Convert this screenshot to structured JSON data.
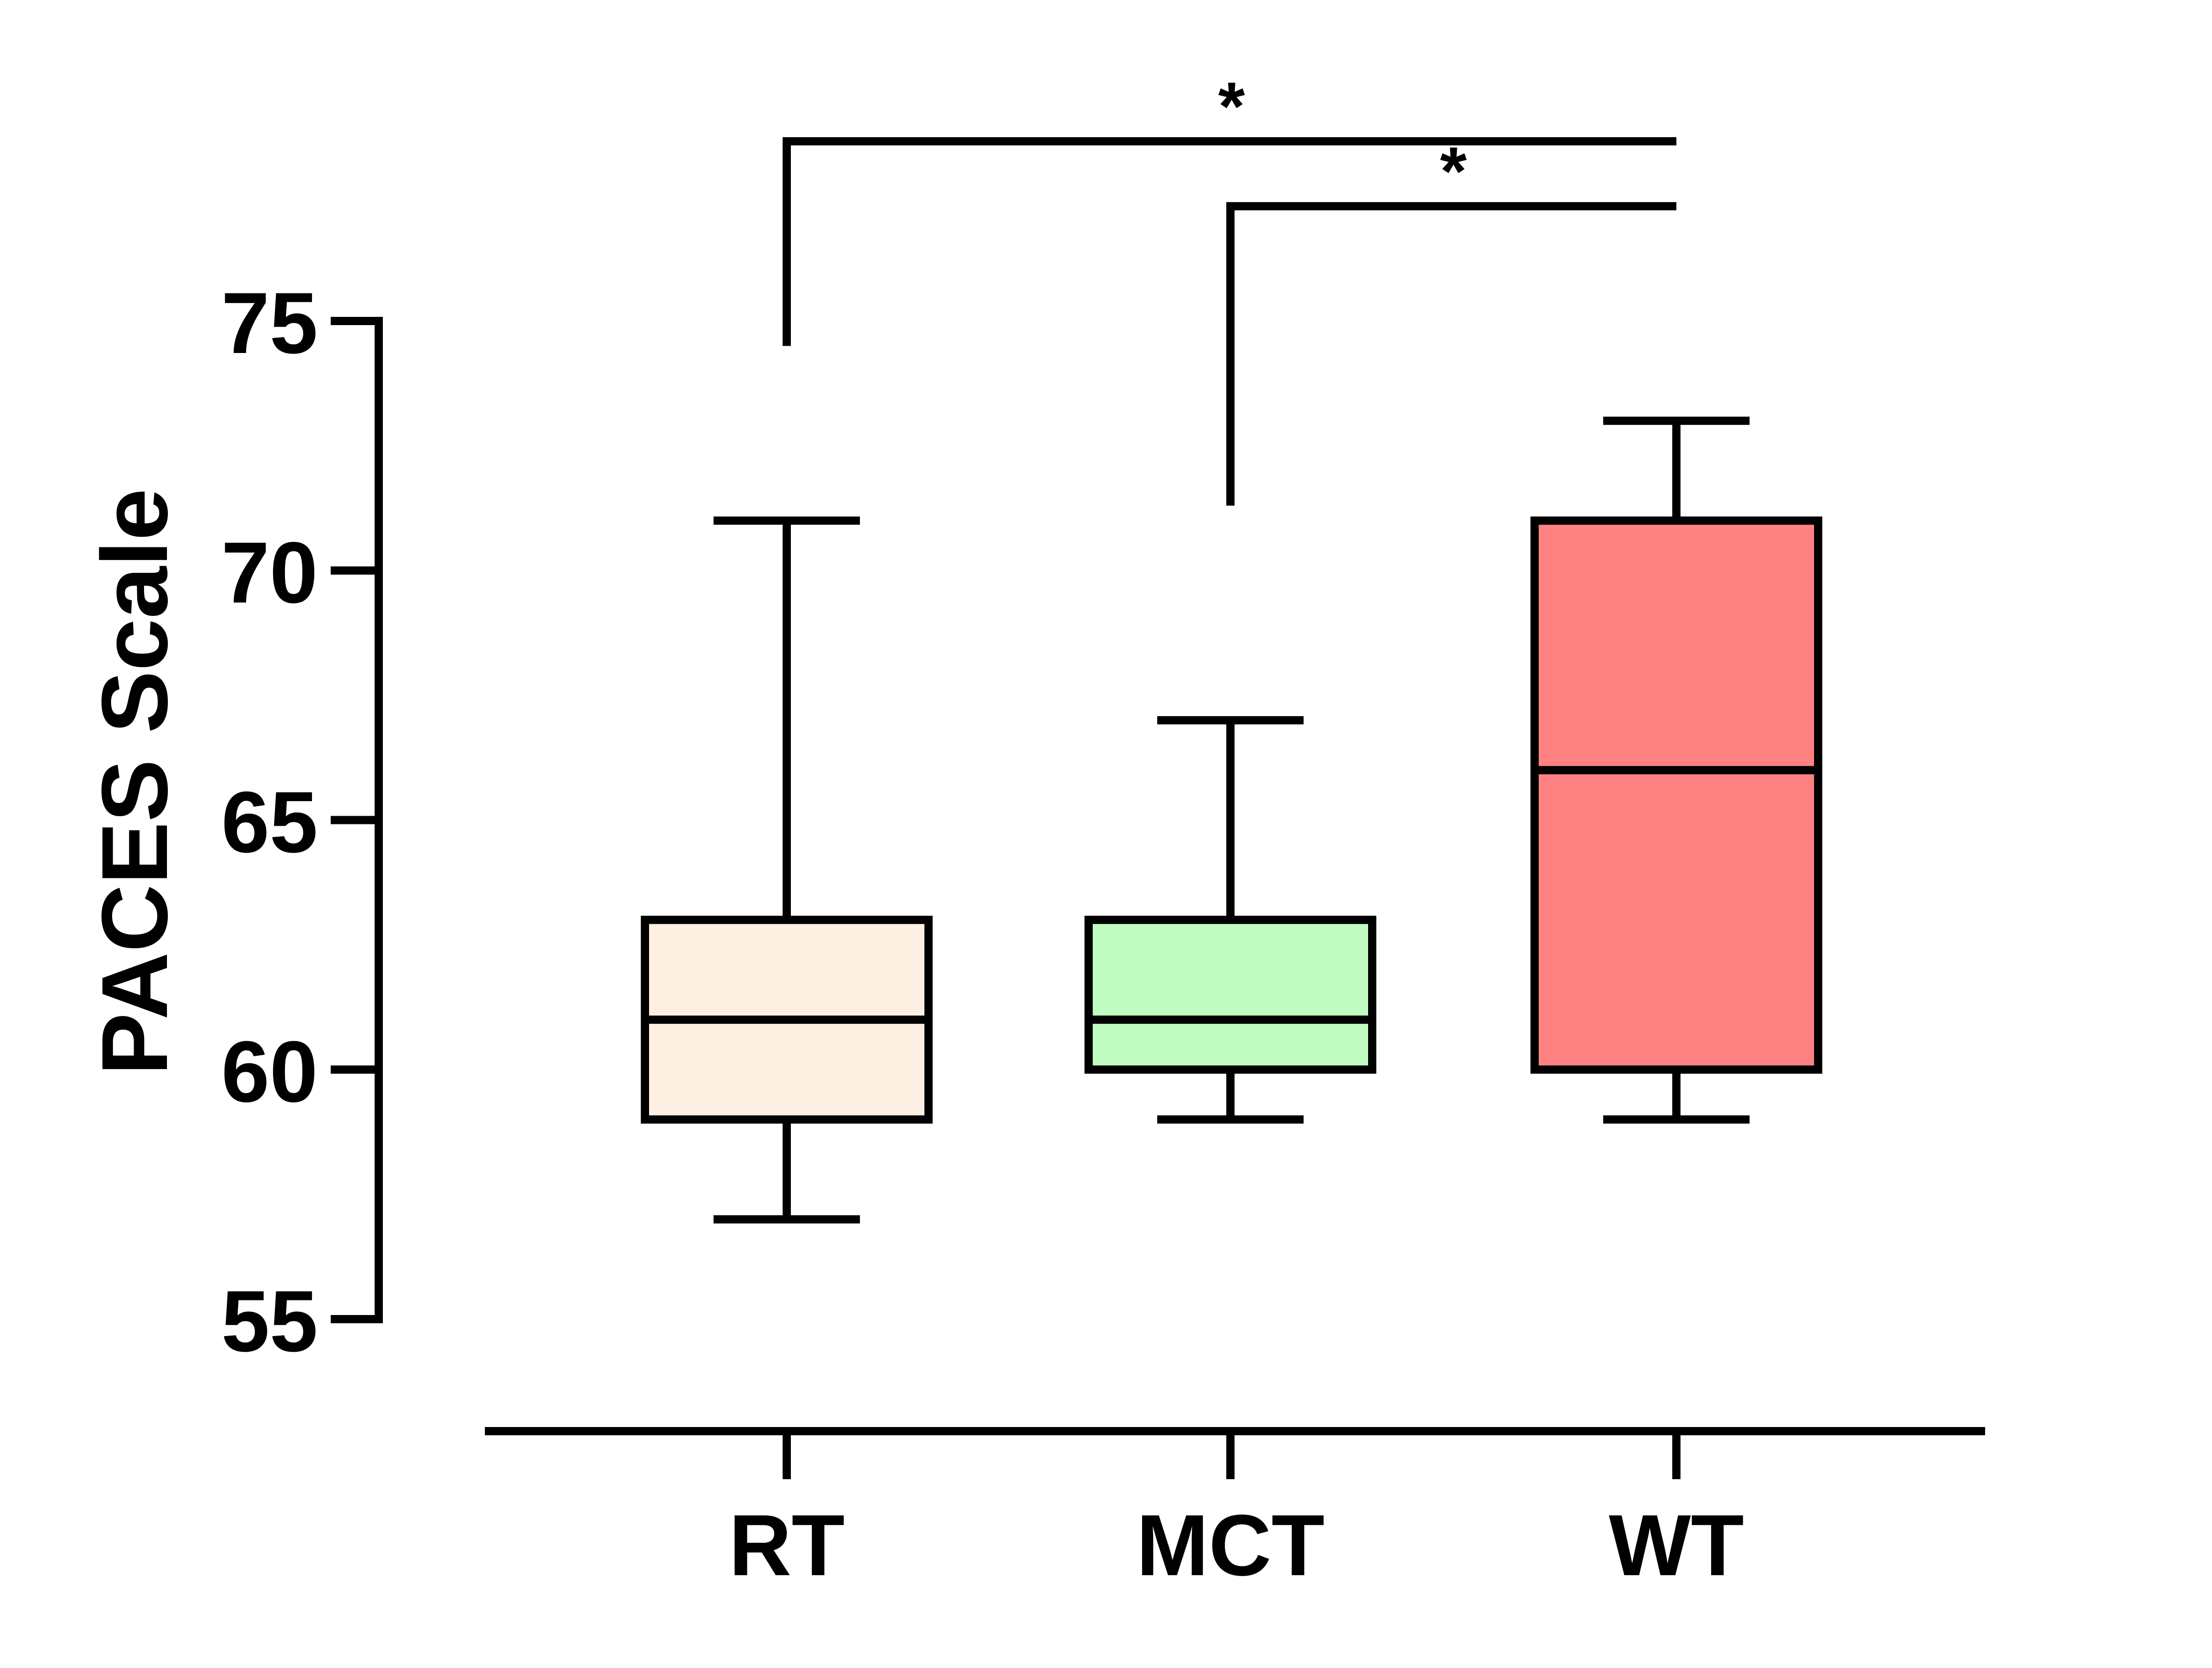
{
  "chart_data": {
    "type": "box",
    "ylabel": "PACES Scale",
    "ylim": [
      55,
      75
    ],
    "yticks": [
      "55",
      "60",
      "65",
      "70",
      "75"
    ],
    "categories": [
      "RT",
      "MCT",
      "WT"
    ],
    "boxes": [
      {
        "label": "RT",
        "min": 57,
        "q1": 59,
        "median": 61,
        "q3": 63,
        "max": 71,
        "color": "#FDEFE1"
      },
      {
        "label": "MCT",
        "min": 59,
        "q1": 60,
        "median": 61,
        "q3": 63,
        "max": 67,
        "color": "#C1FDC2"
      },
      {
        "label": "WT",
        "min": 59,
        "q1": 60,
        "median": 66,
        "q3": 71,
        "max": 73,
        "color": "#FE8282"
      }
    ],
    "significance": [
      {
        "from": "RT",
        "to": "WT",
        "label": "*",
        "bracket_y": 78.6,
        "left_drop_to": 74.5
      },
      {
        "from": "MCT",
        "to": "WT",
        "label": "*",
        "bracket_y": 77.3,
        "left_drop_to": 71.3
      }
    ]
  }
}
